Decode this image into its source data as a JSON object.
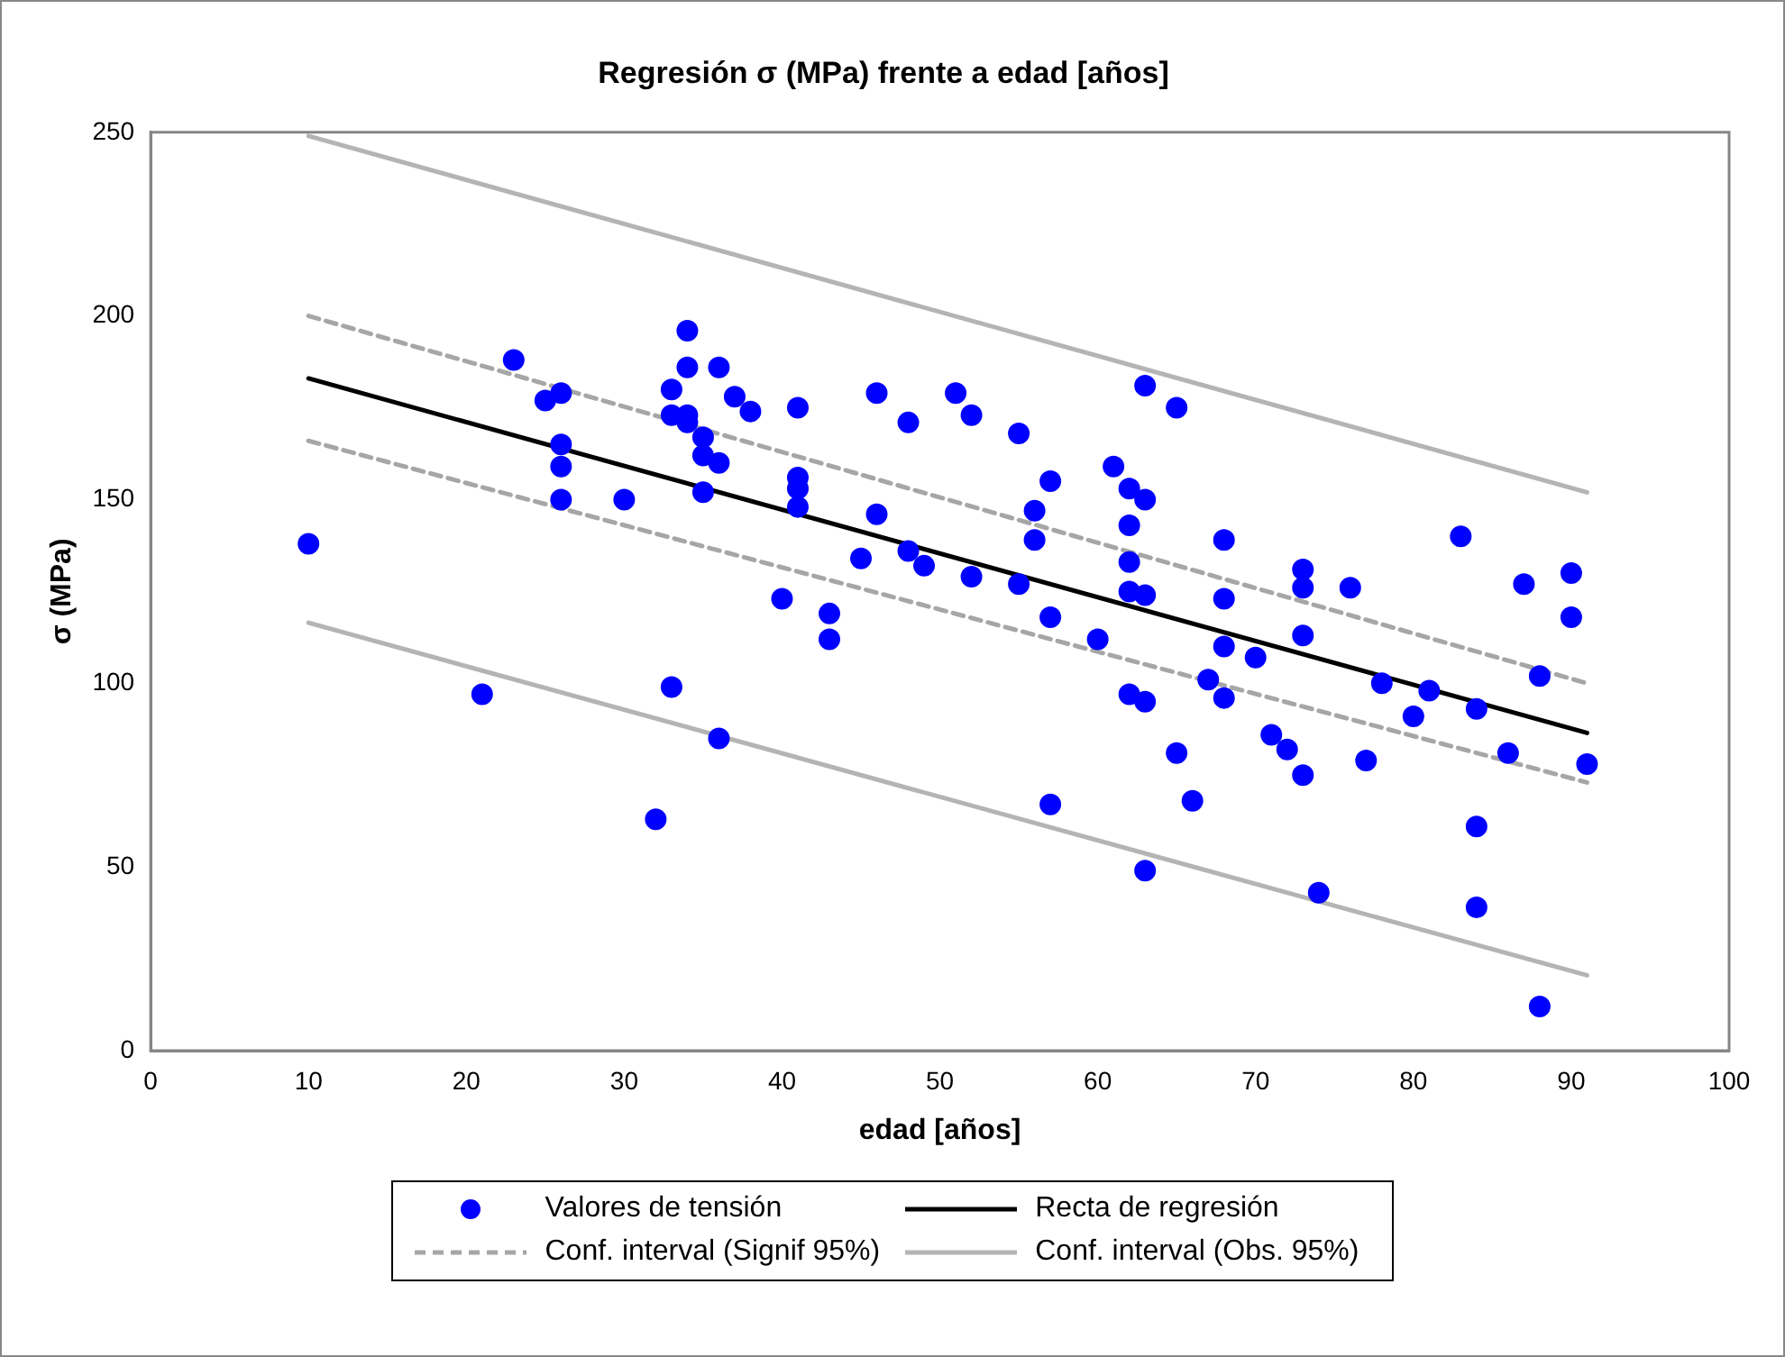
{
  "chart_data": {
    "type": "scatter",
    "title": "Regresión σ (MPa) frente a edad [años]",
    "xlabel": "edad [años]",
    "ylabel": "σ (MPa)",
    "xlim": [
      0,
      100
    ],
    "xticks": [
      0,
      10,
      20,
      30,
      40,
      50,
      60,
      70,
      80,
      90,
      100
    ],
    "ylim": [
      0,
      250
    ],
    "yticks": [
      0,
      50,
      100,
      150,
      200,
      250
    ],
    "grid": false,
    "legend": "bottom",
    "series": [
      {
        "name": "Valores de tensión",
        "marker": "circle",
        "color": "#0000ff",
        "x": [
          10,
          21,
          23,
          25,
          26,
          26,
          26,
          26,
          30,
          33,
          32,
          33,
          33,
          34,
          34,
          34,
          34,
          35,
          35,
          35,
          36,
          36,
          36,
          37,
          38,
          40,
          41,
          41,
          41,
          41,
          43,
          43,
          45,
          46,
          46,
          48,
          48,
          49,
          51,
          52,
          52,
          55,
          55,
          56,
          56,
          57,
          57,
          57,
          60,
          61,
          62,
          62,
          62,
          62,
          62,
          63,
          63,
          63,
          63,
          63,
          65,
          65,
          66,
          67,
          68,
          68,
          68,
          68,
          70,
          71,
          72,
          73,
          73,
          73,
          73,
          74,
          76,
          77,
          78,
          80,
          81,
          83,
          84,
          84,
          84,
          86,
          87,
          88,
          88,
          90,
          90,
          91
        ],
        "values": [
          138,
          97,
          188,
          177,
          179,
          165,
          159,
          150,
          150,
          99,
          63,
          180,
          173,
          196,
          186,
          173,
          171,
          167,
          162,
          152,
          186,
          160,
          85,
          178,
          174,
          123,
          175,
          156,
          153,
          148,
          119,
          112,
          134,
          179,
          146,
          171,
          136,
          132,
          179,
          173,
          129,
          168,
          127,
          147,
          139,
          155,
          118,
          67,
          112,
          159,
          153,
          143,
          133,
          125,
          97,
          150,
          124,
          95,
          49,
          181,
          175,
          81,
          68,
          101,
          123,
          139,
          110,
          96,
          107,
          86,
          82,
          75,
          131,
          126,
          113,
          43,
          126,
          79,
          100,
          91,
          98,
          140,
          93,
          61,
          39,
          81,
          127,
          102,
          12,
          130,
          118,
          78
        ]
      },
      {
        "name": "Recta de regresión",
        "type": "line",
        "marker": "none",
        "color": "#000000",
        "line_style": "solid",
        "x": [
          10,
          91
        ],
        "values": [
          183,
          86.5
        ]
      },
      {
        "name": "Conf. interval (Signif 95%)",
        "type": "line",
        "marker": "none",
        "color": "#a6a6a6",
        "line_style": "dashed",
        "x": [
          10,
          91
        ],
        "values": [
          200,
          100
        ]
      },
      {
        "type": "line",
        "marker": "none",
        "color": "#a6a6a6",
        "line_style": "dashed",
        "x": [
          10,
          91
        ],
        "values": [
          166,
          73
        ]
      },
      {
        "name": "Conf. interval (Obs. 95%)",
        "type": "line",
        "marker": "none",
        "color": "#b4b4b4",
        "line_style": "solid",
        "x": [
          10,
          91
        ],
        "values": [
          249,
          152
        ]
      },
      {
        "type": "line",
        "marker": "none",
        "color": "#b4b4b4",
        "line_style": "solid",
        "x": [
          10,
          91
        ],
        "values": [
          116.5,
          20.5
        ]
      }
    ]
  }
}
